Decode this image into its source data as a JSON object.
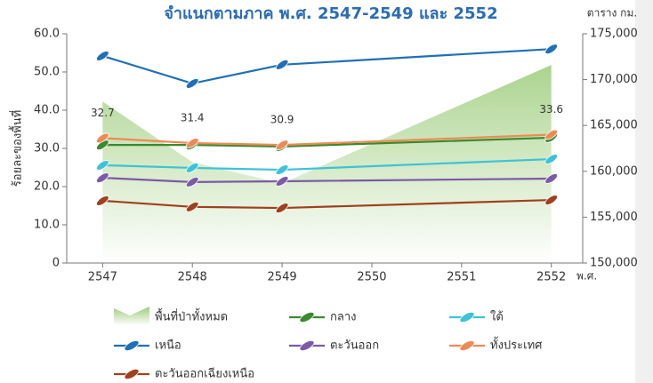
{
  "chart_data": {
    "type": "line",
    "title": "จำแนกตามภาค พ.ศ. 2547-2549 และ 2552",
    "y_label": "ร้อยละของพื้นที่",
    "y2_label": "ตาราง กม.",
    "x_label": "พ.ศ.",
    "x": [
      2547,
      2548,
      2549,
      2552
    ],
    "xlim": [
      2546.6,
      2552.35
    ],
    "xticks": [
      2547,
      2548,
      2549,
      2550,
      2551,
      2552
    ],
    "ylim": [
      0,
      60
    ],
    "yticks": [
      0,
      {
        "value": 10,
        "label": "10.0"
      },
      {
        "value": 20,
        "label": "20.0"
      },
      {
        "value": 30,
        "label": "30.0"
      },
      {
        "value": 40,
        "label": "40.0"
      },
      {
        "value": 50,
        "label": "50.0"
      },
      {
        "value": 60,
        "label": "60.0"
      }
    ],
    "y2lim": [
      150000,
      175000
    ],
    "y2ticks": [
      {
        "value": 150000,
        "label": "150,000"
      },
      {
        "value": 155000,
        "label": "155,000"
      },
      {
        "value": 160000,
        "label": "160,000"
      },
      {
        "value": 165000,
        "label": "165,000"
      },
      {
        "value": 170000,
        "label": "170,000"
      },
      {
        "value": 175000,
        "label": "175,000"
      }
    ],
    "series": [
      {
        "name": "พื้นที่ป่าทั้งหมด",
        "type": "area",
        "axis": "y2",
        "color": "#9ccc7a",
        "values": [
          167600,
          161000,
          158700,
          171600
        ]
      },
      {
        "name": "กลาง",
        "type": "line",
        "color": "#3a8a2e",
        "values": [
          30.9,
          30.9,
          30.5,
          32.8
        ]
      },
      {
        "name": "ใต้",
        "type": "line",
        "color": "#3cc3d8",
        "values": [
          25.6,
          24.9,
          24.4,
          27.2
        ]
      },
      {
        "name": "เหนือ",
        "type": "line",
        "color": "#1f6fb8",
        "values": [
          54.2,
          47.0,
          51.9,
          56.0
        ]
      },
      {
        "name": "ตะวันออก",
        "type": "line",
        "color": "#7b5aa6",
        "values": [
          22.3,
          21.2,
          21.4,
          22.1
        ]
      },
      {
        "name": "ทั้งประเทศ",
        "type": "line",
        "color": "#ee8a55",
        "values": [
          32.7,
          31.4,
          30.9,
          33.6
        ],
        "data_labels": true
      },
      {
        "name": "ตะวันออกเฉียงเหนือ",
        "type": "line",
        "color": "#a0401e",
        "values": [
          16.3,
          14.7,
          14.4,
          16.5
        ]
      }
    ]
  }
}
